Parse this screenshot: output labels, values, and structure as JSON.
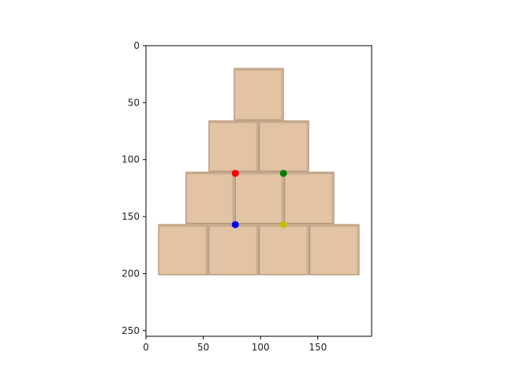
{
  "chart_data": {
    "type": "scatter",
    "title": "",
    "xlabel": "",
    "ylabel": "",
    "xlim": [
      0,
      197
    ],
    "ylim": [
      255,
      0
    ],
    "y_inverted": true,
    "grid": false,
    "background": "image of a pyramid of stacked cardboard boxes",
    "x_ticks": [
      0,
      50,
      100,
      150
    ],
    "y_ticks": [
      0,
      50,
      100,
      150,
      200,
      250
    ],
    "points": [
      {
        "x": 78,
        "y": 112,
        "color": "#ff0000"
      },
      {
        "x": 120,
        "y": 112,
        "color": "#008000"
      },
      {
        "x": 78,
        "y": 157,
        "color": "#0000ff"
      },
      {
        "x": 120,
        "y": 157,
        "color": "#bfbf00"
      }
    ],
    "image_boxes": [
      {
        "x0": 77,
        "y0": 20,
        "x1": 120,
        "y1": 65
      },
      {
        "x0": 55,
        "y0": 66,
        "x1": 98,
        "y1": 110
      },
      {
        "x0": 99,
        "y0": 66,
        "x1": 142,
        "y1": 110
      },
      {
        "x0": 35,
        "y0": 111,
        "x1": 77,
        "y1": 156
      },
      {
        "x0": 78,
        "y0": 111,
        "x1": 120,
        "y1": 156
      },
      {
        "x0": 121,
        "y0": 111,
        "x1": 164,
        "y1": 156
      },
      {
        "x0": 11,
        "y0": 157,
        "x1": 54,
        "y1": 201
      },
      {
        "x0": 55,
        "y0": 157,
        "x1": 98,
        "y1": 201
      },
      {
        "x0": 99,
        "y0": 157,
        "x1": 142,
        "y1": 201
      },
      {
        "x0": 143,
        "y0": 157,
        "x1": 186,
        "y1": 201
      }
    ]
  },
  "colors": {
    "box_fill": "#e2c4a4",
    "box_shade": "#c9a98a",
    "box_edge": "#9c7f62",
    "frame": "#000000"
  }
}
